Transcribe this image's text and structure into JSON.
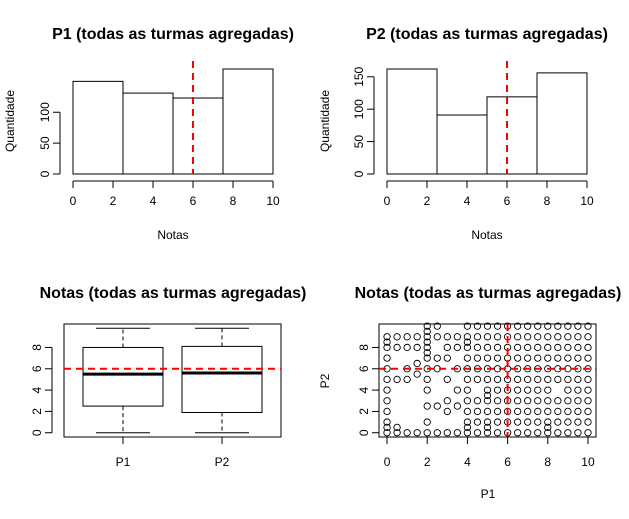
{
  "chart_data": [
    {
      "type": "bar",
      "title": "P1 (todas as turmas agregadas)",
      "xlabel": "Notas",
      "ylabel": "Quantidade",
      "bins": [
        [
          0,
          2.5
        ],
        [
          2.5,
          5
        ],
        [
          5,
          7.5
        ],
        [
          7.5,
          10
        ]
      ],
      "values": [
        150,
        131,
        123,
        170
      ],
      "xlim": [
        0,
        10
      ],
      "ylim": [
        0,
        170
      ],
      "xticks": [
        0,
        2,
        4,
        6,
        8,
        10
      ],
      "yticks": [
        0,
        50,
        100
      ],
      "reference_line": {
        "axis": "x",
        "value": 6,
        "color": "#ff0000",
        "style": "dashed"
      }
    },
    {
      "type": "bar",
      "title": "P2 (todas as turmas agregadas)",
      "xlabel": "Notas",
      "ylabel": "Quantidade",
      "bins": [
        [
          0,
          2.5
        ],
        [
          2.5,
          5
        ],
        [
          5,
          7.5
        ],
        [
          7.5,
          10
        ]
      ],
      "values": [
        162,
        91,
        119,
        156
      ],
      "xlim": [
        0,
        10
      ],
      "ylim": [
        0,
        162
      ],
      "xticks": [
        0,
        2,
        4,
        6,
        8,
        10
      ],
      "yticks": [
        0,
        50,
        100,
        150
      ],
      "reference_line": {
        "axis": "x",
        "value": 6,
        "color": "#ff0000",
        "style": "dashed"
      }
    },
    {
      "type": "boxplot",
      "title": "Notas (todas as turmas agregadas)",
      "categories": [
        "P1",
        "P2"
      ],
      "boxes": [
        {
          "name": "P1",
          "min": 0,
          "q1": 2.5,
          "median": 5.5,
          "q3": 8.0,
          "max": 9.8
        },
        {
          "name": "P2",
          "min": 0,
          "q1": 1.9,
          "median": 5.6,
          "q3": 8.1,
          "max": 9.8
        }
      ],
      "ylim": [
        0,
        10
      ],
      "yticks": [
        0,
        2,
        4,
        6,
        8
      ],
      "reference_line": {
        "axis": "y",
        "value": 6,
        "color": "#ff0000",
        "style": "dashed"
      }
    },
    {
      "type": "scatter",
      "title": "Notas (todas as turmas agregadas)",
      "xlabel": "P1",
      "ylabel": "P2",
      "xlim": [
        0,
        10
      ],
      "ylim": [
        0,
        10
      ],
      "xticks": [
        0,
        2,
        4,
        6,
        8,
        10
      ],
      "yticks": [
        0,
        2,
        4,
        6,
        8
      ],
      "reference_lines": [
        {
          "axis": "x",
          "value": 6,
          "color": "#ff0000",
          "style": "dashed"
        },
        {
          "axis": "y",
          "value": 6,
          "color": "#ff0000",
          "style": "dashed"
        }
      ],
      "points": [
        [
          0,
          0
        ],
        [
          0,
          0.5
        ],
        [
          0,
          1
        ],
        [
          0,
          2
        ],
        [
          0,
          3
        ],
        [
          0,
          4
        ],
        [
          0,
          5
        ],
        [
          0,
          6
        ],
        [
          0,
          7
        ],
        [
          0,
          8
        ],
        [
          0,
          8.5
        ],
        [
          0,
          9
        ],
        [
          0.5,
          0
        ],
        [
          0.5,
          0.5
        ],
        [
          0.5,
          5
        ],
        [
          0.5,
          8
        ],
        [
          0.5,
          9
        ],
        [
          1,
          0
        ],
        [
          1,
          5
        ],
        [
          1,
          6
        ],
        [
          1,
          8
        ],
        [
          1,
          9
        ],
        [
          1.5,
          0
        ],
        [
          1.5,
          5.5
        ],
        [
          1.5,
          6.5
        ],
        [
          1.5,
          8
        ],
        [
          1.5,
          9
        ],
        [
          2,
          0
        ],
        [
          2,
          1
        ],
        [
          2,
          2.5
        ],
        [
          2,
          4
        ],
        [
          2,
          5
        ],
        [
          2,
          6
        ],
        [
          2,
          7
        ],
        [
          2,
          7.5
        ],
        [
          2,
          8
        ],
        [
          2,
          8.5
        ],
        [
          2,
          9
        ],
        [
          2,
          9.5
        ],
        [
          2,
          10
        ],
        [
          2.5,
          0
        ],
        [
          2.5,
          2.5
        ],
        [
          2.5,
          6
        ],
        [
          2.5,
          7
        ],
        [
          2.5,
          9
        ],
        [
          2.5,
          10
        ],
        [
          3,
          0
        ],
        [
          3,
          2
        ],
        [
          3,
          3
        ],
        [
          3,
          5
        ],
        [
          3,
          7
        ],
        [
          3,
          8
        ],
        [
          3,
          9
        ],
        [
          3.5,
          0
        ],
        [
          3.5,
          2.5
        ],
        [
          3.5,
          4
        ],
        [
          3.5,
          6
        ],
        [
          3.5,
          8
        ],
        [
          3.5,
          9
        ],
        [
          4,
          0
        ],
        [
          4,
          0.5
        ],
        [
          4,
          1
        ],
        [
          4,
          2
        ],
        [
          4,
          3
        ],
        [
          4,
          4
        ],
        [
          4,
          5
        ],
        [
          4,
          6
        ],
        [
          4,
          7
        ],
        [
          4,
          8
        ],
        [
          4,
          8.5
        ],
        [
          4,
          9
        ],
        [
          4,
          10
        ],
        [
          4.5,
          0
        ],
        [
          4.5,
          1
        ],
        [
          4.5,
          2
        ],
        [
          4.5,
          3
        ],
        [
          4.5,
          5
        ],
        [
          4.5,
          6
        ],
        [
          4.5,
          7
        ],
        [
          4.5,
          8
        ],
        [
          4.5,
          9
        ],
        [
          4.5,
          10
        ],
        [
          5,
          0
        ],
        [
          5,
          0.5
        ],
        [
          5,
          1
        ],
        [
          5,
          2
        ],
        [
          5,
          3
        ],
        [
          5,
          3.5
        ],
        [
          5,
          4
        ],
        [
          5,
          5
        ],
        [
          5,
          6
        ],
        [
          5,
          7
        ],
        [
          5,
          8
        ],
        [
          5,
          9
        ],
        [
          5,
          10
        ],
        [
          5.5,
          0
        ],
        [
          5.5,
          1
        ],
        [
          5.5,
          2
        ],
        [
          5.5,
          3
        ],
        [
          5.5,
          4
        ],
        [
          5.5,
          5
        ],
        [
          5.5,
          6
        ],
        [
          5.5,
          7
        ],
        [
          5.5,
          8
        ],
        [
          5.5,
          9
        ],
        [
          5.5,
          10
        ],
        [
          6,
          0
        ],
        [
          6,
          1
        ],
        [
          6,
          2
        ],
        [
          6,
          3
        ],
        [
          6,
          4
        ],
        [
          6,
          5
        ],
        [
          6,
          6
        ],
        [
          6,
          7
        ],
        [
          6,
          8
        ],
        [
          6,
          9
        ],
        [
          6,
          10
        ],
        [
          6.5,
          0
        ],
        [
          6.5,
          1
        ],
        [
          6.5,
          2
        ],
        [
          6.5,
          3
        ],
        [
          6.5,
          4
        ],
        [
          6.5,
          5
        ],
        [
          6.5,
          6
        ],
        [
          6.5,
          7
        ],
        [
          6.5,
          8
        ],
        [
          6.5,
          9
        ],
        [
          6.5,
          10
        ],
        [
          7,
          0
        ],
        [
          7,
          1
        ],
        [
          7,
          2
        ],
        [
          7,
          3
        ],
        [
          7,
          4
        ],
        [
          7,
          5
        ],
        [
          7,
          6
        ],
        [
          7,
          7
        ],
        [
          7,
          8
        ],
        [
          7,
          9
        ],
        [
          7,
          10
        ],
        [
          7.5,
          0
        ],
        [
          7.5,
          1
        ],
        [
          7.5,
          2
        ],
        [
          7.5,
          3
        ],
        [
          7.5,
          4
        ],
        [
          7.5,
          5
        ],
        [
          7.5,
          6
        ],
        [
          7.5,
          7
        ],
        [
          7.5,
          8
        ],
        [
          7.5,
          9
        ],
        [
          7.5,
          10
        ],
        [
          8,
          0
        ],
        [
          8,
          0.5
        ],
        [
          8,
          1
        ],
        [
          8,
          2
        ],
        [
          8,
          3
        ],
        [
          8,
          4
        ],
        [
          8,
          5
        ],
        [
          8,
          6
        ],
        [
          8,
          7
        ],
        [
          8,
          8
        ],
        [
          8,
          9
        ],
        [
          8,
          10
        ],
        [
          8.5,
          0
        ],
        [
          8.5,
          1
        ],
        [
          8.5,
          2
        ],
        [
          8.5,
          3
        ],
        [
          8.5,
          5
        ],
        [
          8.5,
          6
        ],
        [
          8.5,
          7
        ],
        [
          8.5,
          8
        ],
        [
          8.5,
          9
        ],
        [
          8.5,
          10
        ],
        [
          9,
          0
        ],
        [
          9,
          1
        ],
        [
          9,
          2
        ],
        [
          9,
          3
        ],
        [
          9,
          4
        ],
        [
          9,
          5
        ],
        [
          9,
          6
        ],
        [
          9,
          7
        ],
        [
          9,
          8
        ],
        [
          9,
          9
        ],
        [
          9,
          10
        ],
        [
          9.5,
          0
        ],
        [
          9.5,
          1
        ],
        [
          9.5,
          2
        ],
        [
          9.5,
          3
        ],
        [
          9.5,
          4
        ],
        [
          9.5,
          5
        ],
        [
          9.5,
          6
        ],
        [
          9.5,
          7
        ],
        [
          9.5,
          8
        ],
        [
          9.5,
          9
        ],
        [
          9.5,
          10
        ],
        [
          10,
          0
        ],
        [
          10,
          1
        ],
        [
          10,
          2
        ],
        [
          10,
          3
        ],
        [
          10,
          4
        ],
        [
          10,
          5
        ],
        [
          10,
          6
        ],
        [
          10,
          7
        ],
        [
          10,
          8
        ],
        [
          10,
          9
        ],
        [
          10,
          10
        ]
      ]
    }
  ]
}
